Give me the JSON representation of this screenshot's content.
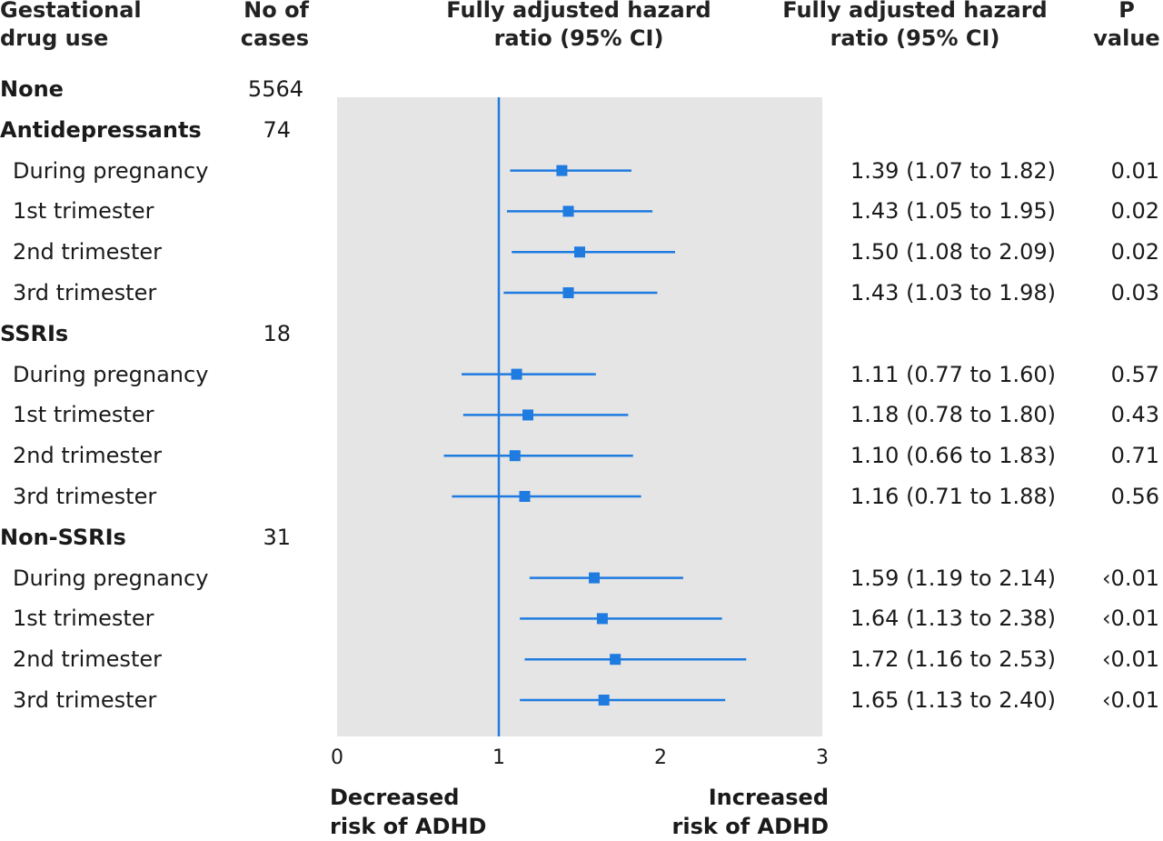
{
  "headers": {
    "drug_use": [
      "Gestational",
      "drug use"
    ],
    "cases": [
      "No of",
      "cases"
    ],
    "plot": [
      "Fully adjusted hazard",
      "ratio (95% CI)"
    ],
    "hr": [
      "Fully adjusted hazard",
      "ratio (95% CI)"
    ],
    "p": [
      "P",
      "value"
    ]
  },
  "footer": {
    "left": [
      "Decreased",
      "risk of ADHD"
    ],
    "right": [
      "Increased",
      "risk of ADHD"
    ]
  },
  "rows": [
    {
      "label": "None",
      "group": true,
      "cases": "5564",
      "hr_text": "",
      "p": ""
    },
    {
      "label": "Antidepressants",
      "group": true,
      "cases": "74",
      "hr_text": "",
      "p": ""
    },
    {
      "label": "During pregnancy",
      "group": false,
      "cases": "",
      "hr_text": "1.39 (1.07 to 1.82)",
      "p": "0.01"
    },
    {
      "label": "1st trimester",
      "group": false,
      "cases": "",
      "hr_text": "1.43 (1.05 to 1.95)",
      "p": "0.02"
    },
    {
      "label": "2nd trimester",
      "group": false,
      "cases": "",
      "hr_text": "1.50 (1.08 to 2.09)",
      "p": "0.02"
    },
    {
      "label": "3rd trimester",
      "group": false,
      "cases": "",
      "hr_text": "1.43 (1.03 to 1.98)",
      "p": "0.03"
    },
    {
      "label": "SSRIs",
      "group": true,
      "cases": "18",
      "hr_text": "",
      "p": ""
    },
    {
      "label": "During pregnancy",
      "group": false,
      "cases": "",
      "hr_text": "1.11 (0.77 to 1.60)",
      "p": "0.57"
    },
    {
      "label": "1st trimester",
      "group": false,
      "cases": "",
      "hr_text": "1.18 (0.78 to 1.80)",
      "p": "0.43"
    },
    {
      "label": "2nd trimester",
      "group": false,
      "cases": "",
      "hr_text": "1.10 (0.66 to 1.83)",
      "p": "0.71"
    },
    {
      "label": "3rd trimester",
      "group": false,
      "cases": "",
      "hr_text": "1.16 (0.71 to 1.88)",
      "p": "0.56"
    },
    {
      "label": "Non-SSRIs",
      "group": true,
      "cases": "31",
      "hr_text": "",
      "p": ""
    },
    {
      "label": "During pregnancy",
      "group": false,
      "cases": "",
      "hr_text": "1.59 (1.19 to 2.14)",
      "p": "‹0.01"
    },
    {
      "label": "1st trimester",
      "group": false,
      "cases": "",
      "hr_text": "1.64 (1.13 to 2.38)",
      "p": "‹0.01"
    },
    {
      "label": "2nd trimester",
      "group": false,
      "cases": "",
      "hr_text": "1.72 (1.16 to 2.53)",
      "p": "‹0.01"
    },
    {
      "label": "3rd trimester",
      "group": false,
      "cases": "",
      "hr_text": "1.65 (1.13 to 2.40)",
      "p": "‹0.01"
    }
  ],
  "colors": {
    "marker": "#1f7be0",
    "panel": "#e5e5e5",
    "text": "#1a1a1a"
  },
  "chart_data": {
    "type": "forest",
    "xlim": [
      0,
      3
    ],
    "xticks": [
      "0",
      "1",
      "2",
      "3"
    ],
    "reference_line": 1,
    "grid": false,
    "points": [
      {
        "row": 2,
        "hr": 1.39,
        "lo": 1.07,
        "hi": 1.82
      },
      {
        "row": 3,
        "hr": 1.43,
        "lo": 1.05,
        "hi": 1.95
      },
      {
        "row": 4,
        "hr": 1.5,
        "lo": 1.08,
        "hi": 2.09
      },
      {
        "row": 5,
        "hr": 1.43,
        "lo": 1.03,
        "hi": 1.98
      },
      {
        "row": 7,
        "hr": 1.11,
        "lo": 0.77,
        "hi": 1.6
      },
      {
        "row": 8,
        "hr": 1.18,
        "lo": 0.78,
        "hi": 1.8
      },
      {
        "row": 9,
        "hr": 1.1,
        "lo": 0.66,
        "hi": 1.83
      },
      {
        "row": 10,
        "hr": 1.16,
        "lo": 0.71,
        "hi": 1.88
      },
      {
        "row": 12,
        "hr": 1.59,
        "lo": 1.19,
        "hi": 2.14
      },
      {
        "row": 13,
        "hr": 1.64,
        "lo": 1.13,
        "hi": 2.38
      },
      {
        "row": 14,
        "hr": 1.72,
        "lo": 1.16,
        "hi": 2.53
      },
      {
        "row": 15,
        "hr": 1.65,
        "lo": 1.13,
        "hi": 2.4
      }
    ]
  }
}
